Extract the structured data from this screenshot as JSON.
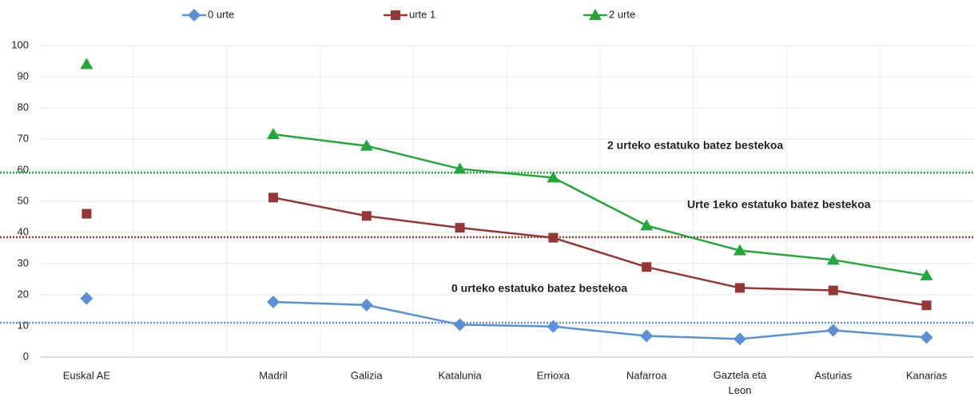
{
  "chart_data": {
    "type": "line",
    "categories": [
      "Euskal AE",
      null,
      "Madril",
      "Galizia",
      "Katalunia",
      "Errioxa",
      "Nafarroa",
      "Gaztela eta Leon",
      "Asturias",
      "Kanarias"
    ],
    "series": [
      {
        "name": "0 urte",
        "color": "#5b8fd6",
        "marker": "diamond",
        "values": [
          18.8,
          null,
          17.7,
          16.7,
          10.4,
          9.8,
          6.8,
          5.8,
          8.6,
          6.3
        ]
      },
      {
        "name": "urte 1",
        "color": "#953735",
        "marker": "square",
        "values": [
          46,
          null,
          51.2,
          45.3,
          41.5,
          38.3,
          28.9,
          22.2,
          21.4,
          16.6
        ]
      },
      {
        "name": "2 urte",
        "color": "#22a83a",
        "marker": "triangle",
        "values": [
          94,
          null,
          71.5,
          67.8,
          60.4,
          57.6,
          42.2,
          34.2,
          31.2,
          26.2
        ]
      }
    ],
    "reference_lines": [
      {
        "value": 11,
        "label": "0 urteko estatuko batez bestekoa",
        "color": "#5b8fd6"
      },
      {
        "value": 38.5,
        "label": "Urte 1eko estatuko batez bestekoa",
        "color": "#953735"
      },
      {
        "value": 59.2,
        "label": "2 urteko estatuko batez bestekoa",
        "color": "#22a83a"
      }
    ],
    "ylim": [
      0,
      100
    ],
    "yticks": [
      0,
      10,
      20,
      30,
      40,
      50,
      60,
      70,
      80,
      90,
      100
    ],
    "grid": true,
    "legend": "top"
  }
}
